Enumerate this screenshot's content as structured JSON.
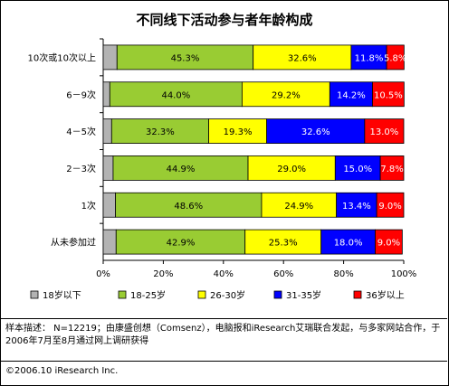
{
  "chart_data": {
    "type": "bar",
    "stacked": true,
    "orientation": "horizontal",
    "title": "不同线下活动参与者年龄构成",
    "categories": [
      "10次或10次以上",
      "6－9次",
      "4－5次",
      "2－3次",
      "1次",
      "从未参加过"
    ],
    "series": [
      {
        "name": "18岁以下",
        "color": "#b3b3b3",
        "values": [
          4.6,
          2.2,
          2.8,
          3.3,
          4.1,
          4.3
        ]
      },
      {
        "name": "18-25岁",
        "color": "#99cc33",
        "values": [
          45.3,
          44.0,
          32.3,
          44.9,
          48.6,
          42.9
        ],
        "labels": [
          "45.3%",
          "44.0%",
          "32.3%",
          "44.9%",
          "48.6%",
          "42.9%"
        ]
      },
      {
        "name": "26-30岁",
        "color": "#ffff00",
        "values": [
          32.6,
          29.2,
          19.3,
          29.0,
          24.9,
          25.3
        ],
        "labels": [
          "32.6%",
          "29.2%",
          "19.3%",
          "29.0%",
          "24.9%",
          "25.3%"
        ]
      },
      {
        "name": "31-35岁",
        "color": "#0000ff",
        "values": [
          11.8,
          14.2,
          32.6,
          15.0,
          13.4,
          18.0
        ],
        "labels": [
          "11.8%",
          "14.2%",
          "32.6%",
          "15.0%",
          "13.4%",
          "18.0%"
        ]
      },
      {
        "name": "36岁以上",
        "color": "#ff0000",
        "values": [
          5.8,
          10.5,
          13.0,
          7.8,
          9.0,
          9.0
        ],
        "labels": [
          "5.8%",
          "10.5%",
          "13.0%",
          "7.8%",
          "9.0%",
          "9.0%"
        ]
      }
    ],
    "x_ticks": [
      "0%",
      "20%",
      "40%",
      "60%",
      "80%",
      "100%"
    ],
    "xlim": [
      0,
      100
    ],
    "legend_position": "bottom",
    "grid": false
  },
  "note": "样本描述： N=12219；由康盛创想（Comsenz），电脑报和iResearch艾瑞联合发起，与多家网站合作，于2006年7月至8月通过网上调研获得",
  "copyright": "©2006.10 iResearch Inc."
}
